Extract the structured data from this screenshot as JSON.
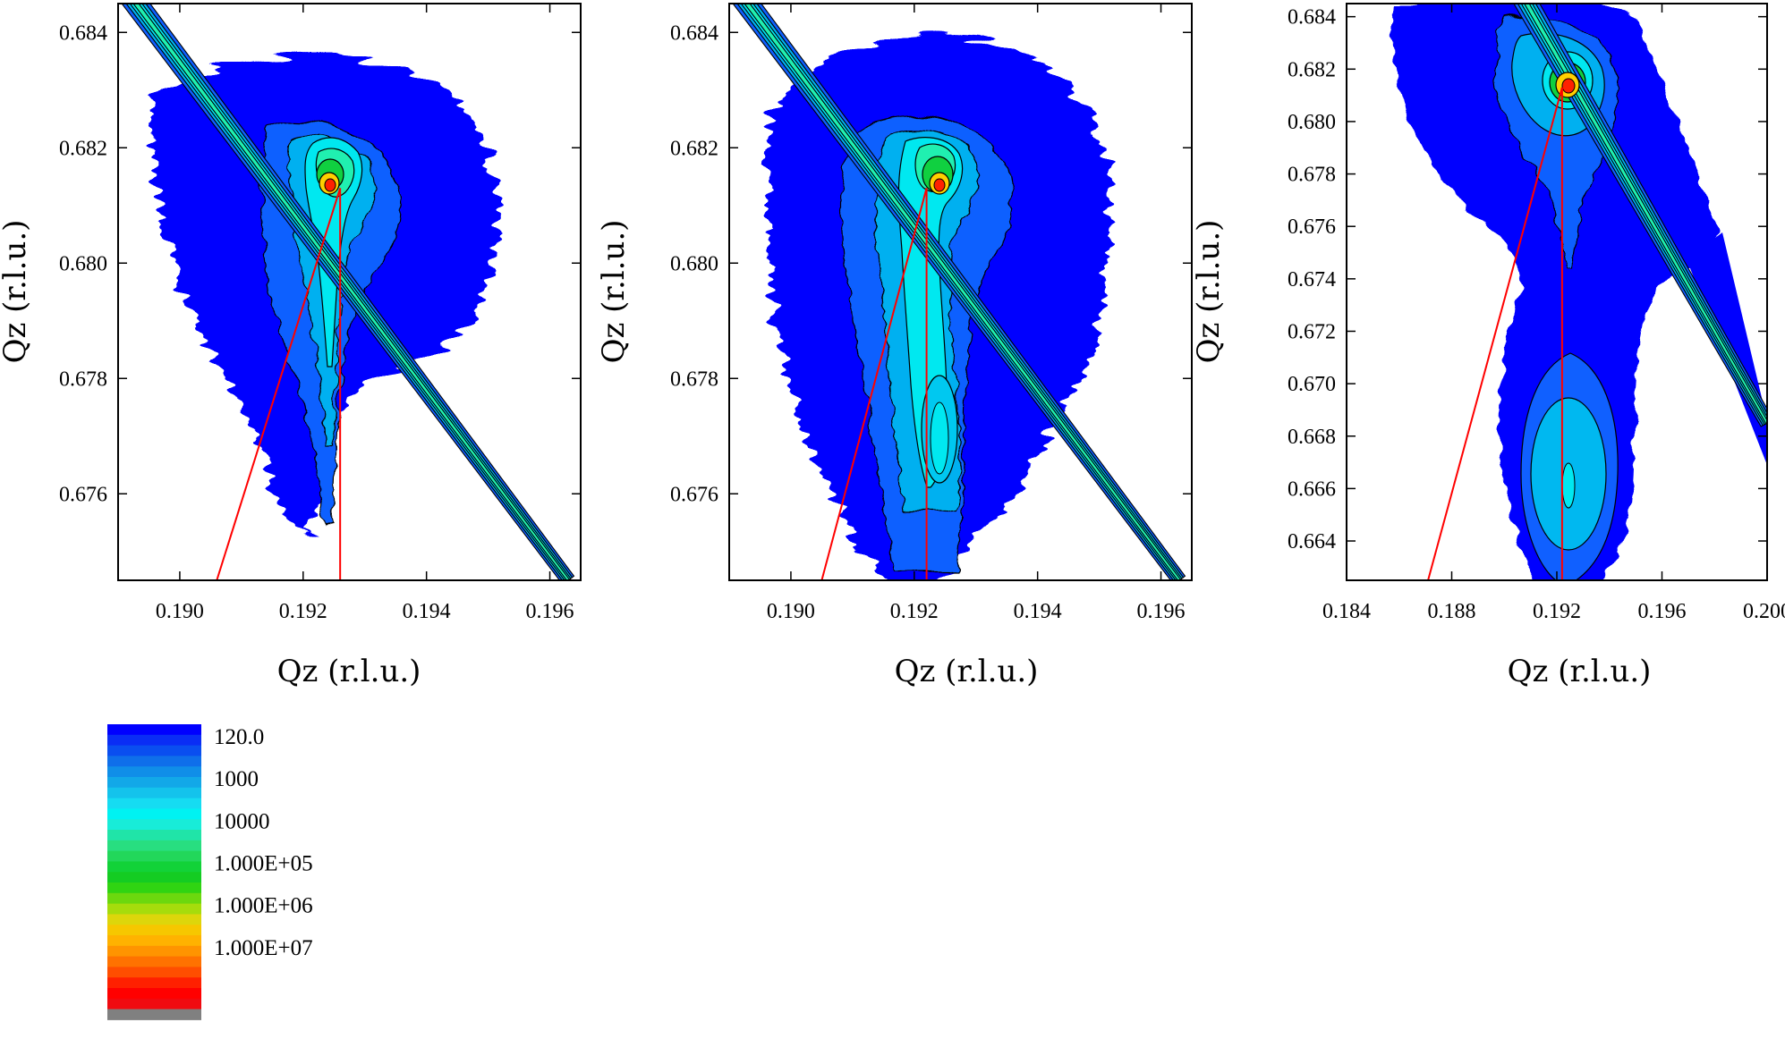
{
  "chart_data": [
    {
      "type": "heatmap",
      "subtype": "reciprocal space map (filled contour)",
      "xlabel": "Qz (r.l.u.)",
      "ylabel": "Qz (r.l.u.)",
      "xlim": [
        0.189,
        0.1965
      ],
      "ylim": [
        0.6745,
        0.6845
      ],
      "xticks": [
        0.19,
        0.192,
        0.194,
        0.196
      ],
      "xtick_labels": [
        "0.190",
        "0.192",
        "0.194",
        "0.196"
      ],
      "yticks": [
        0.676,
        0.678,
        0.68,
        0.682,
        0.684
      ],
      "ytick_labels": [
        "0.676",
        "0.678",
        "0.680",
        "0.682",
        "0.684"
      ],
      "peaks": [
        {
          "x": 0.1926,
          "y": 0.6813,
          "level": "1.000E+07"
        }
      ],
      "streak": {
        "from": [
          0.1888,
          0.6852
        ],
        "to": [
          0.1963,
          0.6745
        ]
      },
      "reference_lines": [
        {
          "from": [
            0.1926,
            0.6745
          ],
          "to": [
            0.1926,
            0.6813
          ]
        },
        {
          "from": [
            0.1906,
            0.6745
          ],
          "to": [
            0.1926,
            0.6813
          ]
        }
      ]
    },
    {
      "type": "heatmap",
      "subtype": "reciprocal space map (filled contour)",
      "xlabel": "Qz (r.l.u.)",
      "ylabel": "Qz (r.l.u.)",
      "xlim": [
        0.189,
        0.1965
      ],
      "ylim": [
        0.6745,
        0.6845
      ],
      "xticks": [
        0.19,
        0.192,
        0.194,
        0.196
      ],
      "xtick_labels": [
        "0.190",
        "0.192",
        "0.194",
        "0.196"
      ],
      "yticks": [
        0.676,
        0.678,
        0.68,
        0.682,
        0.684
      ],
      "ytick_labels": [
        "0.676",
        "0.678",
        "0.680",
        "0.682",
        "0.684"
      ],
      "peaks": [
        {
          "x": 0.1922,
          "y": 0.6813,
          "level": "1.000E+07"
        },
        {
          "x": 0.1922,
          "y": 0.677,
          "level": "1000"
        }
      ],
      "streak": {
        "from": [
          0.1888,
          0.6852
        ],
        "to": [
          0.1963,
          0.6745
        ]
      },
      "reference_lines": [
        {
          "from": [
            0.1922,
            0.6745
          ],
          "to": [
            0.1922,
            0.6813
          ]
        },
        {
          "from": [
            0.1905,
            0.6745
          ],
          "to": [
            0.1922,
            0.6813
          ]
        }
      ]
    },
    {
      "type": "heatmap",
      "subtype": "reciprocal space map (filled contour)",
      "xlabel": "Qz (r.l.u.)",
      "ylabel": "Qz (r.l.u.)",
      "xlim": [
        0.184,
        0.2
      ],
      "ylim": [
        0.6625,
        0.6845
      ],
      "xticks": [
        0.184,
        0.188,
        0.192,
        0.196,
        0.2
      ],
      "xtick_labels": [
        "0.184",
        "0.188",
        "0.192",
        "0.196",
        "0.200"
      ],
      "yticks": [
        0.664,
        0.666,
        0.668,
        0.67,
        0.672,
        0.674,
        0.676,
        0.678,
        0.68,
        0.682,
        0.684
      ],
      "ytick_labels": [
        "0.664",
        "0.666",
        "0.668",
        "0.670",
        "0.672",
        "0.674",
        "0.676",
        "0.678",
        "0.680",
        "0.682",
        "0.684"
      ],
      "peaks": [
        {
          "x": 0.1922,
          "y": 0.6813,
          "level": "1.000E+07"
        },
        {
          "x": 0.1922,
          "y": 0.666,
          "level": "1000"
        }
      ],
      "streak": {
        "from": [
          0.19,
          0.686
        ],
        "to": [
          0.2,
          0.6685
        ]
      },
      "reference_lines": [
        {
          "from": [
            0.1922,
            0.6625
          ],
          "to": [
            0.1922,
            0.6813
          ]
        },
        {
          "from": [
            0.1871,
            0.6625
          ],
          "to": [
            0.1922,
            0.6813
          ]
        }
      ]
    }
  ],
  "colorbar": {
    "colors": [
      "#0000ff",
      "#0a2df5",
      "#0a4ef0",
      "#0f6fea",
      "#108ee8",
      "#12a8e8",
      "#14c3ec",
      "#16dcf2",
      "#00f2f2",
      "#18ecd8",
      "#20e4a8",
      "#28de80",
      "#22d75a",
      "#12d238",
      "#14cc22",
      "#30d412",
      "#6cd80e",
      "#a6dc0c",
      "#ddd60b",
      "#f6c700",
      "#ffb200",
      "#ff9400",
      "#ff7200",
      "#ff4e00",
      "#ff2000",
      "#ff0000",
      "#f00a10",
      "#808080"
    ],
    "ticks": [
      {
        "label": "120.0",
        "band": 0
      },
      {
        "label": "1000",
        "band": 4
      },
      {
        "label": "10000",
        "band": 8
      },
      {
        "label": "1.000E+05",
        "band": 12
      },
      {
        "label": "1.000E+06",
        "band": 16
      },
      {
        "label": "1.000E+07",
        "band": 20
      }
    ]
  },
  "colors": {
    "outer_level": "#0000ff",
    "level_2": "#1060ff",
    "level_3": "#00b0f0",
    "level_4": "#00e8f0",
    "level_5": "#20f0b0",
    "level_6": "#10d040",
    "peak_core": "#ff2000",
    "peak_ring": "#ffd000",
    "reference_line": "#ff0000",
    "contour_line": "#000000"
  }
}
